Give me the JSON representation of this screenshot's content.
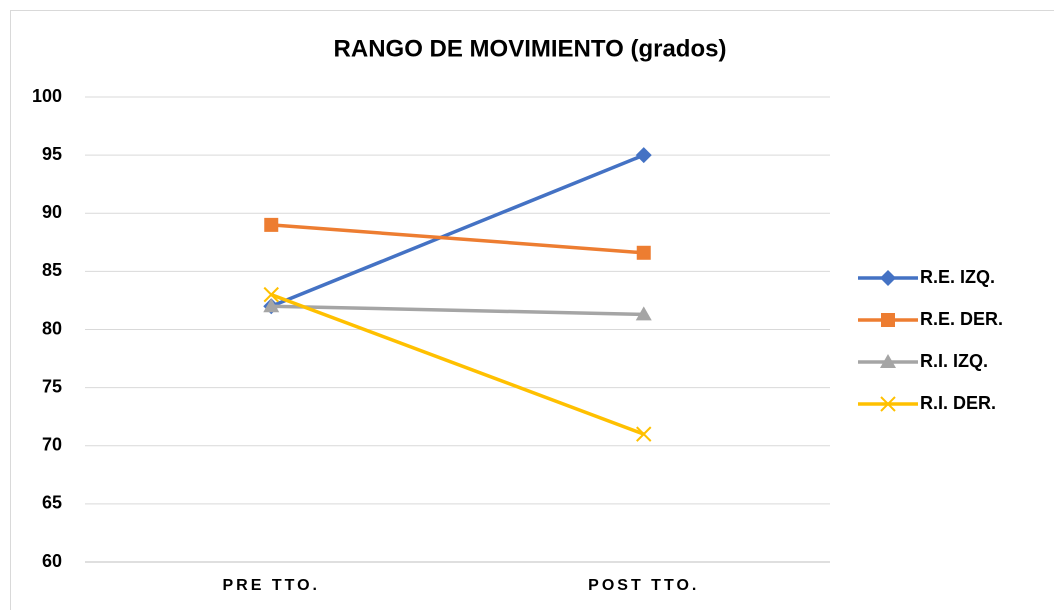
{
  "chart_data": {
    "type": "line",
    "title": "RANGO DE MOVIMIENTO (grados)",
    "categories": [
      "PRE TTO.",
      "POST TTO."
    ],
    "series": [
      {
        "name": "R.E. IZQ.",
        "color": "#4472c4",
        "marker": "diamond",
        "values": [
          82,
          95
        ]
      },
      {
        "name": "R.E. DER.",
        "color": "#ed7d31",
        "marker": "square",
        "values": [
          89,
          86.6
        ]
      },
      {
        "name": "R.I. IZQ.",
        "color": "#a5a5a5",
        "marker": "triangle",
        "values": [
          82,
          81.3
        ]
      },
      {
        "name": "R.I. DER.",
        "color": "#ffc000",
        "marker": "x",
        "values": [
          83,
          71
        ]
      }
    ],
    "ylim": [
      60,
      100
    ],
    "yticks": [
      60,
      65,
      70,
      75,
      80,
      85,
      90,
      95,
      100
    ],
    "grid": true,
    "legend": "right"
  }
}
